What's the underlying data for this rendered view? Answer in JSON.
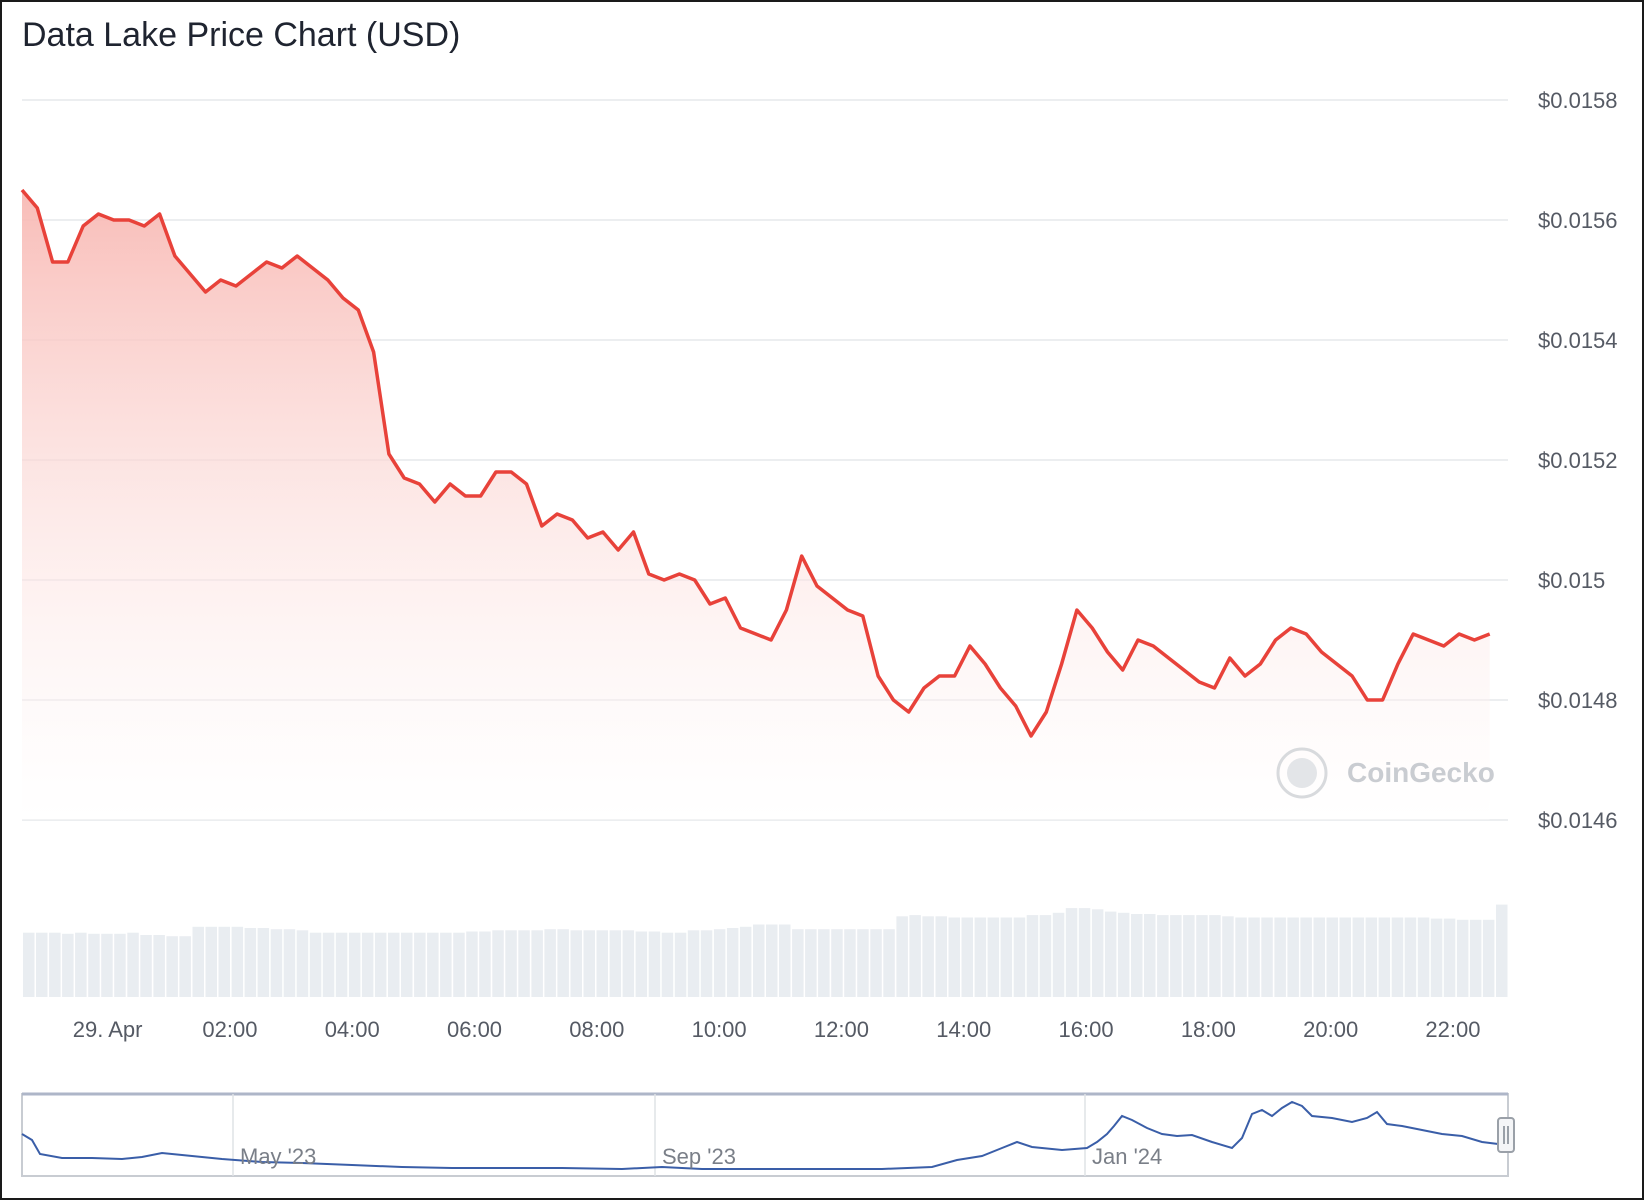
{
  "chart_data": {
    "type": "line",
    "title": "Data Lake Price Chart (USD)",
    "xlabel": "",
    "ylabel": "",
    "x_ticks": [
      "29. Apr",
      "02:00",
      "04:00",
      "06:00",
      "08:00",
      "10:00",
      "12:00",
      "14:00",
      "16:00",
      "18:00",
      "20:00",
      "22:00"
    ],
    "y_ticks": [
      "$0.0158",
      "$0.0156",
      "$0.0154",
      "$0.0152",
      "$0.015",
      "$0.0148",
      "$0.0146"
    ],
    "ylim": [
      0.0146,
      0.0158
    ],
    "grid": true,
    "line_color": "#e8423a",
    "fill_color": "#fbd3d0",
    "series": [
      {
        "x_hours": [
          0,
          0.25,
          0.5,
          0.75,
          1,
          1.25,
          1.5,
          1.75,
          2,
          2.25,
          2.5,
          2.75,
          3,
          3.25,
          3.5,
          3.75,
          4,
          4.25,
          4.5,
          4.75,
          5,
          5.25,
          5.5,
          5.75,
          6,
          6.25,
          6.5,
          6.75,
          7,
          7.25,
          7.5,
          7.75,
          8,
          8.25,
          8.5,
          8.75,
          9,
          9.25,
          9.5,
          9.75,
          10,
          10.25,
          10.5,
          10.75,
          11,
          11.25,
          11.5,
          11.75,
          12,
          12.25,
          12.5,
          12.75,
          13,
          13.25,
          13.5,
          13.75,
          14,
          14.25,
          14.5,
          14.75,
          15,
          15.25,
          15.5,
          15.75,
          16,
          16.25,
          16.5,
          16.75,
          17,
          17.25,
          17.5,
          17.75,
          18,
          18.25,
          18.5,
          18.75,
          19,
          19.25,
          19.5,
          19.75,
          20,
          20.25,
          20.5,
          20.75,
          21,
          21.25,
          21.5,
          21.75,
          22,
          22.25,
          22.5,
          22.75,
          23,
          23.25,
          23.5,
          23.75,
          24
        ],
        "values": [
          0.01565,
          0.01562,
          0.01553,
          0.01553,
          0.01559,
          0.01561,
          0.0156,
          0.0156,
          0.01559,
          0.01561,
          0.01554,
          0.01551,
          0.01548,
          0.0155,
          0.01549,
          0.01551,
          0.01553,
          0.01552,
          0.01554,
          0.01552,
          0.0155,
          0.01547,
          0.01545,
          0.01538,
          0.01521,
          0.01517,
          0.01516,
          0.01513,
          0.01516,
          0.01514,
          0.01514,
          0.01518,
          0.01518,
          0.01516,
          0.01509,
          0.01511,
          0.0151,
          0.01507,
          0.01508,
          0.01505,
          0.01508,
          0.01501,
          0.015,
          0.01501,
          0.015,
          0.01496,
          0.01497,
          0.01492,
          0.01491,
          0.0149,
          0.01495,
          0.01504,
          0.01499,
          0.01497,
          0.01495,
          0.01494,
          0.01484,
          0.0148,
          0.01478,
          0.01482,
          0.01484,
          0.01484,
          0.01489,
          0.01486,
          0.01482,
          0.01479,
          0.01474,
          0.01478,
          0.01486,
          0.01495,
          0.01492,
          0.01488,
          0.01485,
          0.0149,
          0.01489,
          0.01487,
          0.01485,
          0.01483,
          0.01482,
          0.01487,
          0.01484,
          0.01486,
          0.0149,
          0.01492,
          0.01491,
          0.01488,
          0.01486,
          0.01484,
          0.0148,
          0.0148,
          0.01486,
          0.01491,
          0.0149,
          0.01489,
          0.01491,
          0.0149,
          0.01491
        ]
      }
    ],
    "volume": [
      0.55,
      0.55,
      0.55,
      0.54,
      0.55,
      0.54,
      0.54,
      0.54,
      0.55,
      0.53,
      0.53,
      0.52,
      0.52,
      0.6,
      0.6,
      0.6,
      0.6,
      0.59,
      0.59,
      0.58,
      0.58,
      0.57,
      0.55,
      0.55,
      0.55,
      0.55,
      0.55,
      0.55,
      0.55,
      0.55,
      0.55,
      0.55,
      0.55,
      0.55,
      0.56,
      0.56,
      0.57,
      0.57,
      0.57,
      0.57,
      0.58,
      0.58,
      0.57,
      0.57,
      0.57,
      0.57,
      0.57,
      0.56,
      0.56,
      0.55,
      0.55,
      0.57,
      0.57,
      0.58,
      0.59,
      0.6,
      0.62,
      0.62,
      0.62,
      0.58,
      0.58,
      0.58,
      0.58,
      0.58,
      0.58,
      0.58,
      0.58,
      0.69,
      0.7,
      0.69,
      0.69,
      0.68,
      0.68,
      0.68,
      0.68,
      0.68,
      0.68,
      0.7,
      0.7,
      0.72,
      0.76,
      0.76,
      0.75,
      0.73,
      0.72,
      0.71,
      0.71,
      0.7,
      0.7,
      0.7,
      0.7,
      0.7,
      0.69,
      0.68,
      0.68,
      0.68,
      0.68,
      0.68,
      0.68,
      0.68,
      0.68,
      0.68,
      0.68,
      0.68,
      0.68,
      0.68,
      0.68,
      0.68,
      0.67,
      0.67,
      0.66,
      0.66,
      0.66,
      0.79
    ],
    "navigator": {
      "x_ticks": [
        "May '23",
        "Sep '23",
        "Jan '24"
      ],
      "line_color": "#3a5ea8"
    }
  },
  "watermark": "CoinGecko"
}
